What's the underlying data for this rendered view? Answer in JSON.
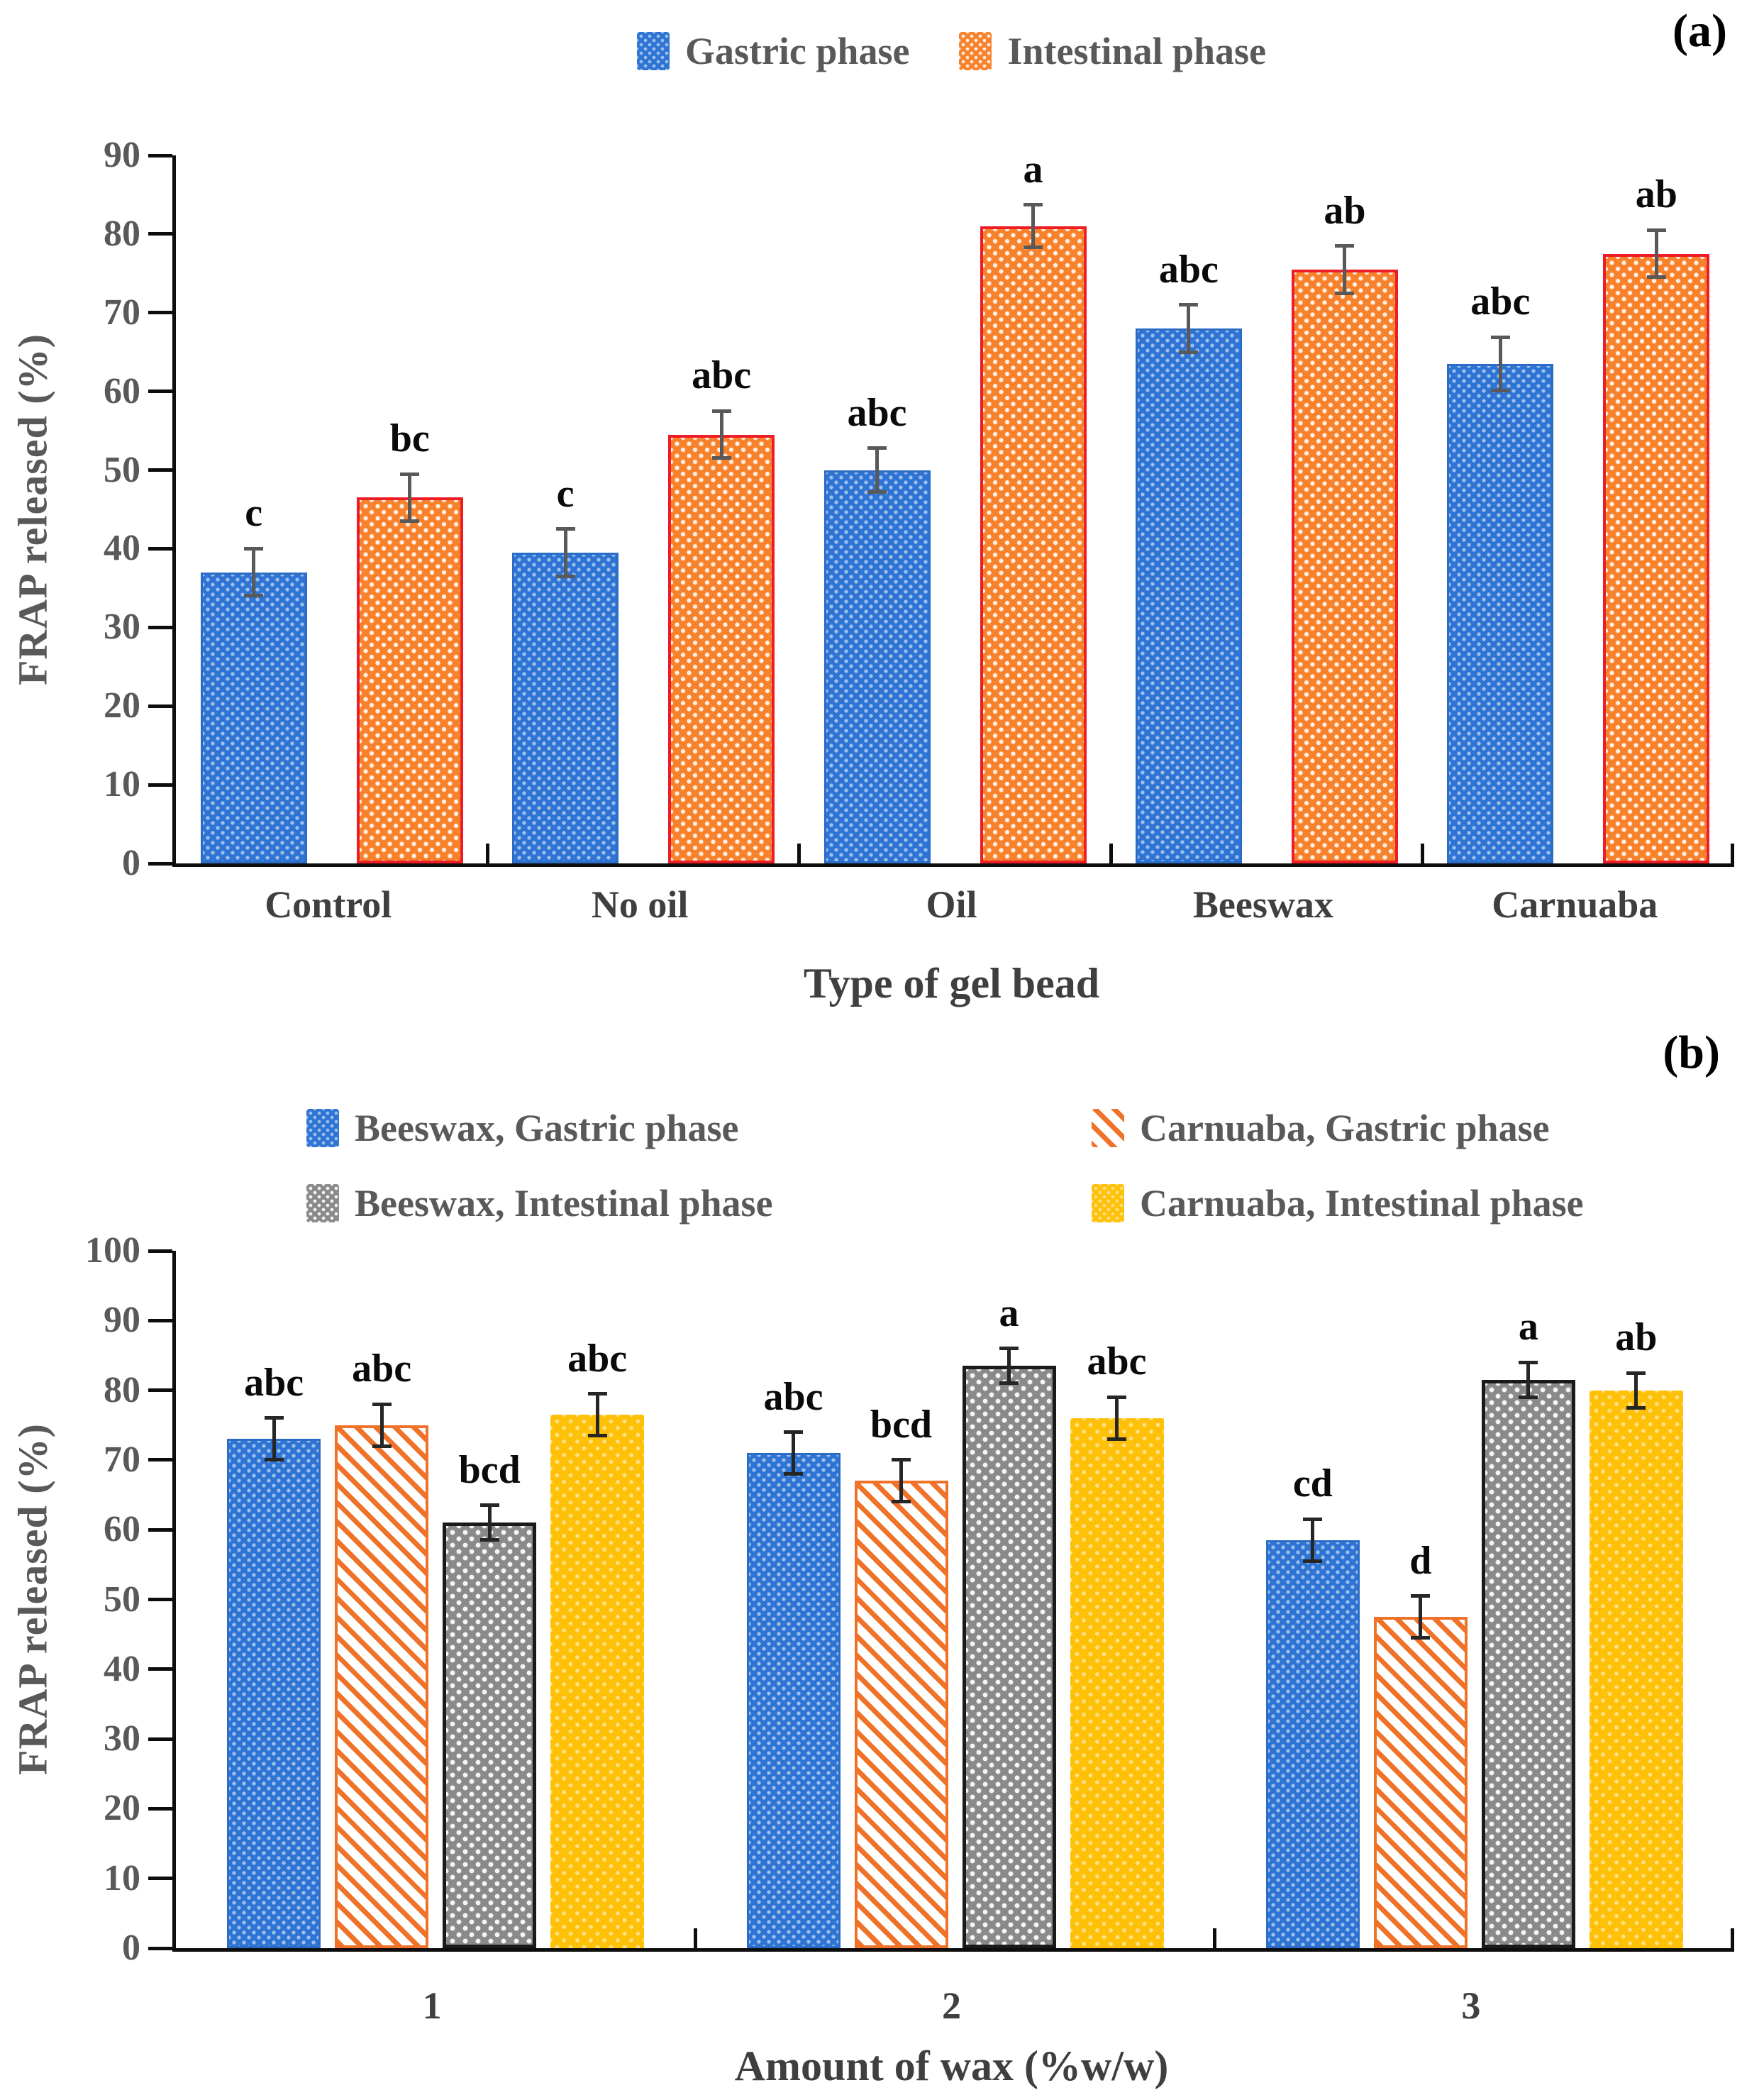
{
  "figure_title": "FRAP release figure",
  "styles": {
    "blue-dots": {
      "fill": "#2E74D4",
      "dot": "#D6E6FF",
      "border": "#2B6CC6"
    },
    "orange-dots": {
      "fill": "#F8822B",
      "dot": "#FFFFFF",
      "border": "#EE1C25"
    },
    "orange-hatch": {
      "fill": "#FFFFFF",
      "stripe": "#F07228",
      "border": "#F07228"
    },
    "gray-dots": {
      "fill": "#8A8A8A",
      "dot": "#FFFFFF",
      "border": "#1A1A1A"
    },
    "yellow-dots": {
      "fill": "#FFC008",
      "dot": "#FFE49A",
      "border": "#FFC008"
    }
  },
  "chart_data": [
    {
      "panel_tag": "(a)",
      "type": "bar",
      "ylabel": "FRAP released (%)",
      "xlabel": "Type of gel bead",
      "ylim": [
        0,
        90
      ],
      "ytick_step": 10,
      "grid": false,
      "legend_position": "top",
      "error_color": "#595959",
      "categories": [
        "Control",
        "No oil",
        "Oil",
        "Beeswax",
        "Carnuaba"
      ],
      "series": [
        {
          "name": "Gastric phase",
          "style": "blue-dots",
          "values": [
            37,
            39.5,
            50,
            68,
            63.5
          ],
          "errors": [
            3,
            3,
            2.8,
            3,
            3.4
          ],
          "sig_letters": [
            "c",
            "c",
            "abc",
            "abc",
            "abc"
          ]
        },
        {
          "name": "Intestinal phase",
          "style": "orange-dots",
          "values": [
            46.5,
            54.5,
            81,
            75.5,
            77.5
          ],
          "errors": [
            3,
            3,
            2.7,
            3,
            3
          ],
          "sig_letters": [
            "bc",
            "abc",
            "a",
            "ab",
            "ab"
          ]
        }
      ]
    },
    {
      "panel_tag": "(b)",
      "type": "bar",
      "ylabel": "FRAP released (%)",
      "xlabel": "Amount of wax (%w/w)",
      "ylim": [
        0,
        100
      ],
      "ytick_step": 10,
      "grid": false,
      "legend_position": "top",
      "error_color": "#262626",
      "categories": [
        "1",
        "2",
        "3"
      ],
      "series": [
        {
          "name": "Beeswax, Gastric phase",
          "style": "blue-dots",
          "values": [
            73,
            71,
            58.5
          ],
          "errors": [
            3,
            3,
            3
          ],
          "sig_letters": [
            "abc",
            "abc",
            "cd"
          ]
        },
        {
          "name": "Carnuaba, Gastric phase",
          "style": "orange-hatch",
          "values": [
            75,
            67,
            47.5
          ],
          "errors": [
            3,
            3,
            3
          ],
          "sig_letters": [
            "abc",
            "bcd",
            "d"
          ]
        },
        {
          "name": "Beeswax, Intestinal phase",
          "style": "gray-dots",
          "values": [
            61,
            83.5,
            81.5
          ],
          "errors": [
            2.5,
            2.5,
            2.5
          ],
          "sig_letters": [
            "bcd",
            "a",
            "a"
          ]
        },
        {
          "name": "Carnuaba, Intestinal phase",
          "style": "yellow-dots",
          "values": [
            76.5,
            76,
            80
          ],
          "errors": [
            3,
            3,
            2.5
          ],
          "sig_letters": [
            "abc",
            "abc",
            "ab"
          ]
        }
      ]
    }
  ]
}
